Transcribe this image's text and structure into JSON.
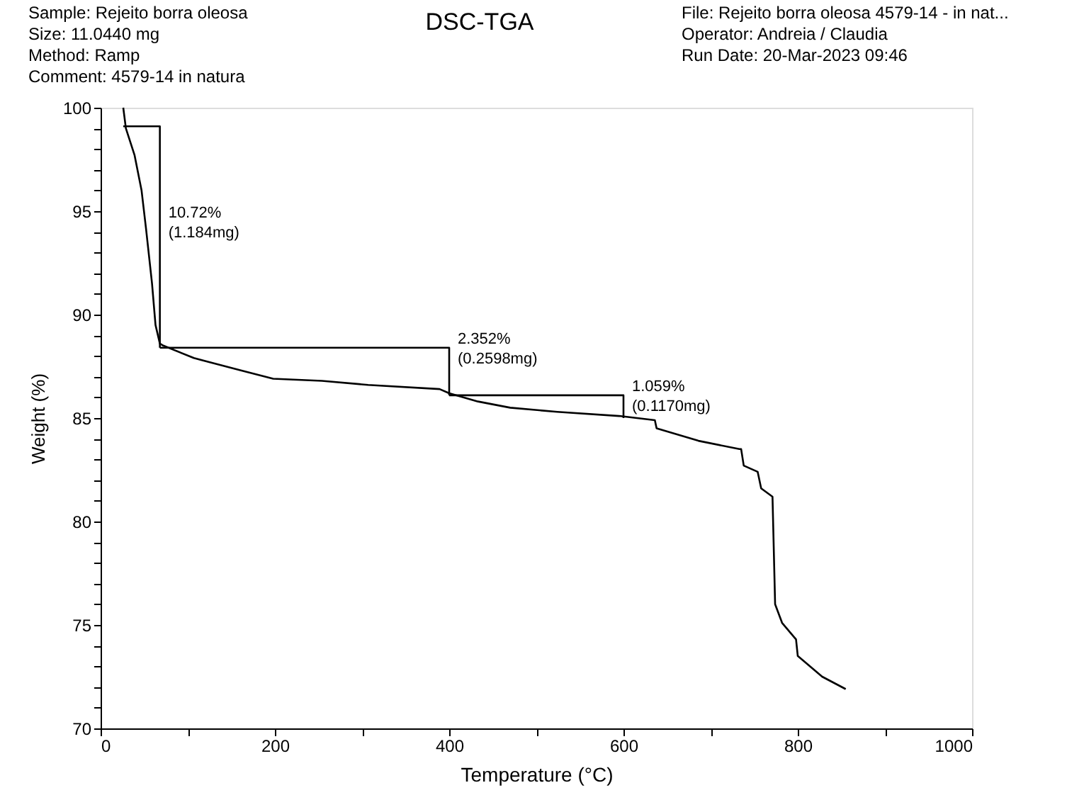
{
  "chart_data": {
    "type": "line",
    "title": "DSC-TGA",
    "xlabel": "Temperature (°C)",
    "ylabel": "Weight (%)",
    "annotations": [
      "Sample: Rejeito borra oleosa\nSize:  11.0440 mg\nMethod: Ramp\nComment: 4579-14 in natura",
      "File: Rejeito borra oleosa 4579-14 - in nat...\nOperator: Andreia / Claudia\nRun Date: 20-Mar-2023 09:46",
      {
        "text": "10.72%\n(1.184mg)",
        "x": 68,
        "y": 94.5
      },
      {
        "text": "2.352%\n(0.2598mg)",
        "x": 400,
        "y": 88.4
      },
      {
        "text": "1.059%\n(0.1170mg)",
        "x": 600,
        "y": 86.1
      }
    ],
    "series": [
      {
        "color": "#000000",
        "x": [
          26,
          29,
          39,
          47,
          52,
          59,
          63,
          68,
          72,
          107,
          161,
          198,
          254,
          307,
          389,
          400,
          433,
          470,
          524,
          595,
          636,
          638,
          686,
          733,
          735,
          738,
          754,
          758,
          771,
          774,
          782,
          798,
          800,
          828,
          855
        ],
        "values": [
          100,
          99.0,
          97.7,
          96.0,
          94.2,
          91.5,
          89.5,
          88.6,
          88.5,
          87.9,
          87.3,
          86.9,
          86.8,
          86.6,
          86.4,
          86.2,
          85.8,
          85.5,
          85.3,
          85.1,
          84.9,
          84.5,
          83.9,
          83.5,
          83.5,
          82.7,
          82.4,
          81.6,
          81.2,
          76.0,
          75.1,
          74.3,
          73.5,
          72.5,
          71.9
        ]
      },
      {
        "color": "#000000",
        "x": [
          26,
          68,
          68
        ],
        "values": [
          99.1,
          99.1,
          88.4
        ]
      },
      {
        "color": "#000000",
        "x": [
          68,
          400,
          400
        ],
        "values": [
          88.4,
          88.4,
          86.1
        ]
      },
      {
        "color": "#000000",
        "x": [
          400,
          600,
          600
        ],
        "values": [
          86.1,
          86.1,
          85.0
        ]
      }
    ],
    "xlim": [
      0,
      1000
    ],
    "ylim": [
      70,
      100
    ],
    "xticks": [
      0,
      {
        "value": 100,
        "label": null
      },
      200,
      {
        "value": 300,
        "label": null
      },
      400,
      {
        "value": 500,
        "label": null
      },
      600,
      {
        "value": 700,
        "label": null
      },
      800,
      {
        "value": 900,
        "label": null
      },
      1000
    ],
    "yticks": [
      70,
      {
        "value": 71,
        "label": null
      },
      {
        "value": 72,
        "label": null
      },
      {
        "value": 73,
        "label": null
      },
      {
        "value": 74,
        "label": null
      },
      75,
      {
        "value": 76,
        "label": null
      },
      {
        "value": 77,
        "label": null
      },
      {
        "value": 78,
        "label": null
      },
      {
        "value": 79,
        "label": null
      },
      80,
      {
        "value": 81,
        "label": null
      },
      {
        "value": 82,
        "label": null
      },
      {
        "value": 83,
        "label": null
      },
      {
        "value": 84,
        "label": null
      },
      85,
      {
        "value": 86,
        "label": null
      },
      {
        "value": 87,
        "label": null
      },
      {
        "value": 88,
        "label": null
      },
      {
        "value": 89,
        "label": null
      },
      90,
      {
        "value": 91,
        "label": null
      },
      {
        "value": 92,
        "label": null
      },
      {
        "value": 93,
        "label": null
      },
      {
        "value": 94,
        "label": null
      },
      95,
      {
        "value": 96,
        "label": null
      },
      {
        "value": 97,
        "label": null
      },
      {
        "value": 98,
        "label": null
      },
      {
        "value": 99,
        "label": null
      },
      100
    ],
    "grid": false,
    "marker": "none",
    "line_style": "solid"
  }
}
